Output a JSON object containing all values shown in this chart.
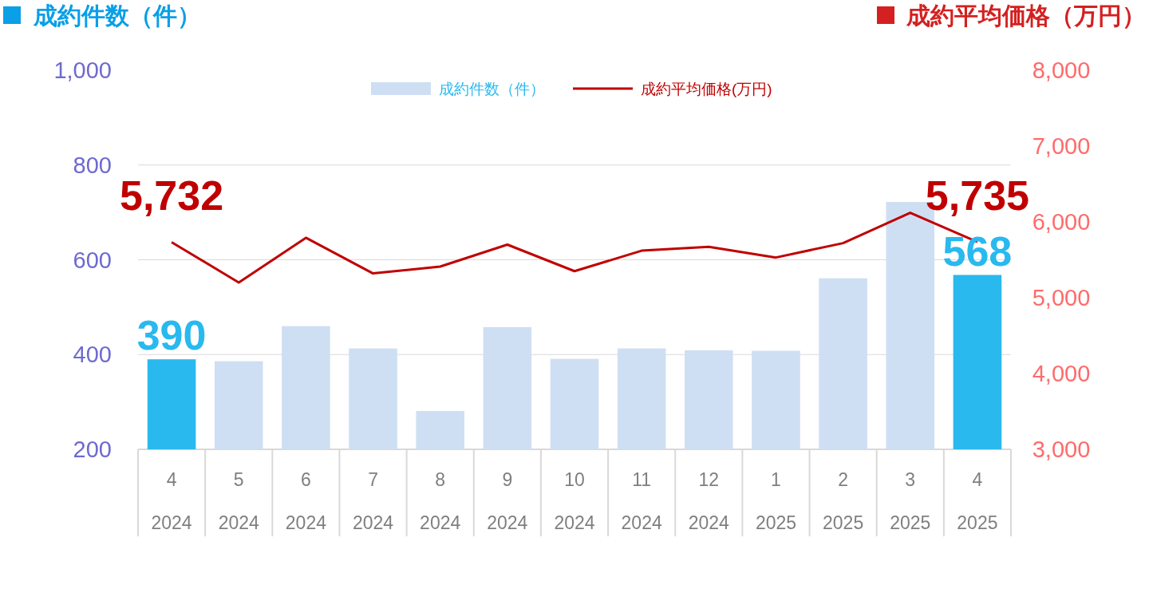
{
  "chart_data": {
    "type": "bar",
    "ylabel": "成約件数（件）",
    "y2label": "成約平均価格（万円）",
    "categories": [
      "4\n2024",
      "5\n2024",
      "6\n2024",
      "7\n2024",
      "8\n2024",
      "9\n2024",
      "10\n2024",
      "11\n2024",
      "12\n2024",
      "1\n2025",
      "2\n2025",
      "3\n2025",
      "4\n2025"
    ],
    "ylim": [
      200,
      1000
    ],
    "yticks": [
      200,
      400,
      600,
      800,
      {
        "value": 1000,
        "label": "1,000"
      }
    ],
    "y2lim": [
      3000,
      8000
    ],
    "y2ticks": [
      {
        "value": 3000,
        "label": "3,000"
      },
      {
        "value": 4000,
        "label": "4,000"
      },
      {
        "value": 5000,
        "label": "5,000"
      },
      {
        "value": 6000,
        "label": "6,000"
      },
      {
        "value": 7000,
        "label": "7,000"
      },
      {
        "value": 8000,
        "label": "8,000"
      }
    ],
    "grid": "y",
    "legend": "top",
    "series": [
      {
        "name": "成約件数（件）",
        "color": "#cfdff3",
        "colors": [
          "#29b9ee",
          "#cfdff3",
          "#cfdff3",
          "#cfdff3",
          "#cfdff3",
          "#cfdff3",
          "#cfdff3",
          "#cfdff3",
          "#cfdff3",
          "#cfdff3",
          "#cfdff3",
          "#cfdff3",
          "#29b9ee"
        ],
        "values": [
          390,
          386,
          460,
          413,
          281,
          458,
          391,
          413,
          409,
          408,
          561,
          722,
          568
        ],
        "value_labels": [
          "390",
          null,
          null,
          null,
          null,
          null,
          null,
          null,
          null,
          null,
          null,
          null,
          "568"
        ]
      },
      {
        "name": "成約平均価格(万円)",
        "type": "line",
        "axis": "y2",
        "color": "#c00000",
        "values": [
          5732,
          5200,
          5790,
          5320,
          5410,
          5700,
          5350,
          5620,
          5670,
          5530,
          5720,
          6120,
          5735
        ],
        "value_labels": [
          "5,732",
          null,
          null,
          null,
          null,
          null,
          null,
          null,
          null,
          null,
          null,
          null,
          "5,735"
        ]
      }
    ]
  }
}
